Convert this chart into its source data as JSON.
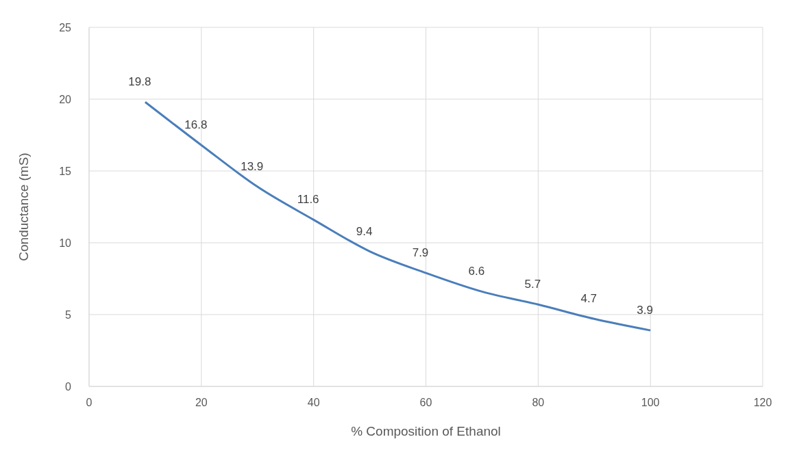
{
  "chart_data": {
    "type": "line",
    "xlabel": "% Composition of Ethanol",
    "ylabel": "Conductance (mS)",
    "x": [
      10,
      20,
      30,
      40,
      50,
      60,
      70,
      80,
      90,
      100
    ],
    "series": [
      {
        "color": "#4a7ebb",
        "values": [
          19.8,
          16.8,
          13.9,
          11.6,
          9.4,
          7.9,
          6.6,
          5.7,
          4.7,
          3.9
        ]
      }
    ],
    "xlim": [
      0,
      120
    ],
    "xticks": [
      0,
      20,
      40,
      60,
      80,
      100,
      120
    ],
    "ylim": [
      0,
      25
    ],
    "yticks": [
      0,
      5,
      10,
      15,
      20,
      25
    ],
    "grid": true,
    "legend": false,
    "marker": "none",
    "line_style": "solid",
    "data_labels": true
  }
}
